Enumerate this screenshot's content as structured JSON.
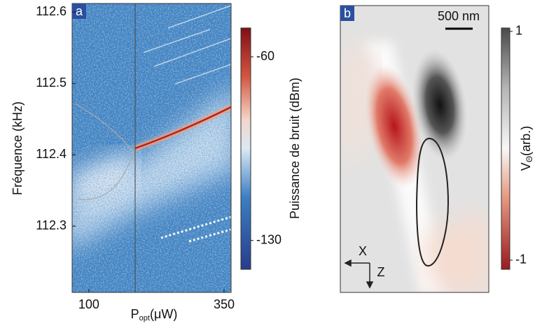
{
  "chart_data": [
    {
      "type": "heatmap",
      "panel_label": "a",
      "xlabel": {
        "base": "P",
        "sub": "opt",
        "unit": "(μW)"
      },
      "ylabel": "Fréquence (kHz)",
      "xlim": [
        69,
        363
      ],
      "xticks": [
        100,
        350
      ],
      "ylim": [
        112.207,
        112.612
      ],
      "yticks": [
        112.3,
        112.4,
        112.5,
        112.6
      ],
      "colorbar": {
        "label": "Puissance de bruit (dBm)",
        "lim": [
          -141,
          -49
        ],
        "ticks": [
          -60,
          -130
        ]
      }
    },
    {
      "type": "image",
      "panel_label": "b",
      "scale_bar": "500 nm",
      "axis_labels": [
        "X",
        "Z"
      ],
      "colorbar": {
        "label": {
          "base": "V",
          "sub": "Θ",
          "unit": "(arb.)"
        },
        "lim": [
          -1.08,
          1.03
        ],
        "ticks": [
          1,
          -1
        ]
      }
    }
  ]
}
